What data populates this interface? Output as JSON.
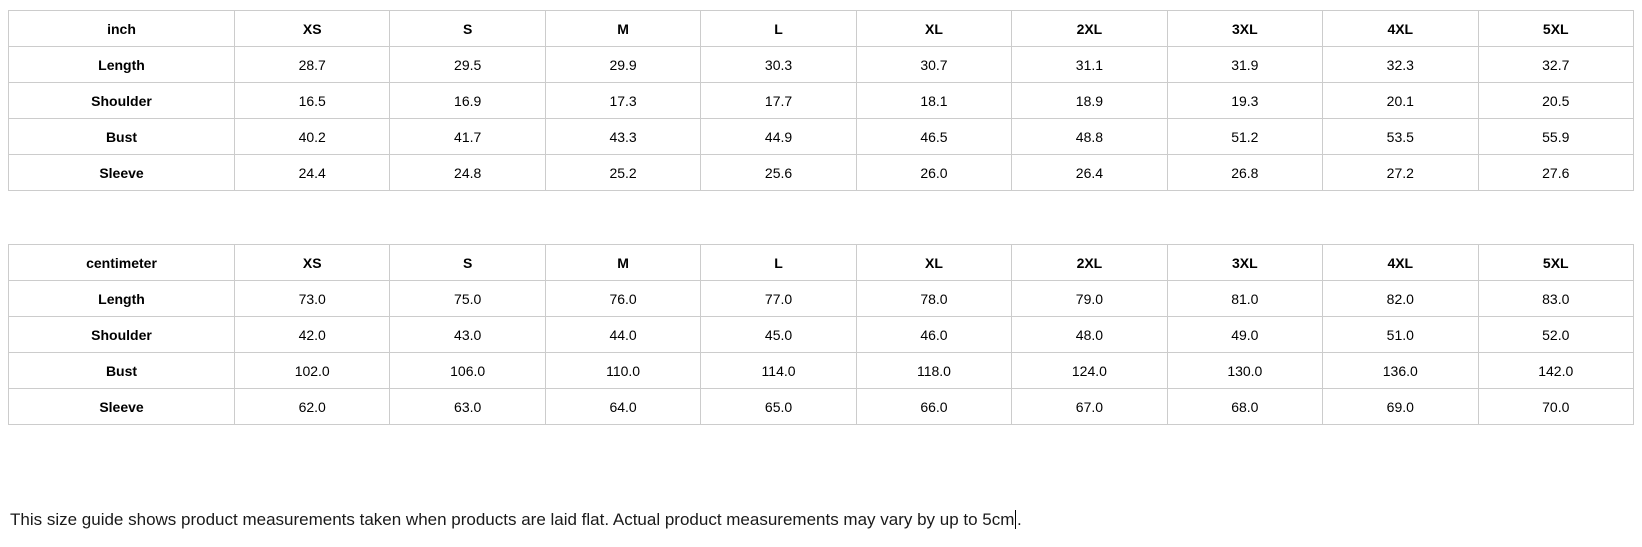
{
  "colors": {
    "border": "#cccccc",
    "text": "#000000",
    "background": "#ffffff"
  },
  "tables": [
    {
      "unit_label": "inch",
      "sizes": [
        "XS",
        "S",
        "M",
        "L",
        "XL",
        "2XL",
        "3XL",
        "4XL",
        "5XL"
      ],
      "rows": [
        {
          "label": "Length",
          "values": [
            "28.7",
            "29.5",
            "29.9",
            "30.3",
            "30.7",
            "31.1",
            "31.9",
            "32.3",
            "32.7"
          ]
        },
        {
          "label": "Shoulder",
          "values": [
            "16.5",
            "16.9",
            "17.3",
            "17.7",
            "18.1",
            "18.9",
            "19.3",
            "20.1",
            "20.5"
          ]
        },
        {
          "label": "Bust",
          "values": [
            "40.2",
            "41.7",
            "43.3",
            "44.9",
            "46.5",
            "48.8",
            "51.2",
            "53.5",
            "55.9"
          ]
        },
        {
          "label": "Sleeve",
          "values": [
            "24.4",
            "24.8",
            "25.2",
            "25.6",
            "26.0",
            "26.4",
            "26.8",
            "27.2",
            "27.6"
          ]
        }
      ]
    },
    {
      "unit_label": "centimeter",
      "sizes": [
        "XS",
        "S",
        "M",
        "L",
        "XL",
        "2XL",
        "3XL",
        "4XL",
        "5XL"
      ],
      "rows": [
        {
          "label": "Length",
          "values": [
            "73.0",
            "75.0",
            "76.0",
            "77.0",
            "78.0",
            "79.0",
            "81.0",
            "82.0",
            "83.0"
          ]
        },
        {
          "label": "Shoulder",
          "values": [
            "42.0",
            "43.0",
            "44.0",
            "45.0",
            "46.0",
            "48.0",
            "49.0",
            "51.0",
            "52.0"
          ]
        },
        {
          "label": "Bust",
          "values": [
            "102.0",
            "106.0",
            "110.0",
            "114.0",
            "118.0",
            "124.0",
            "130.0",
            "136.0",
            "142.0"
          ]
        },
        {
          "label": "Sleeve",
          "values": [
            "62.0",
            "63.0",
            "64.0",
            "65.0",
            "66.0",
            "67.0",
            "68.0",
            "69.0",
            "70.0"
          ]
        }
      ]
    }
  ],
  "footnote": {
    "text_before_caret": "This size guide shows product measurements taken when products are laid flat. Actual product measurements may vary by up to 5cm",
    "text_after_caret": "."
  }
}
